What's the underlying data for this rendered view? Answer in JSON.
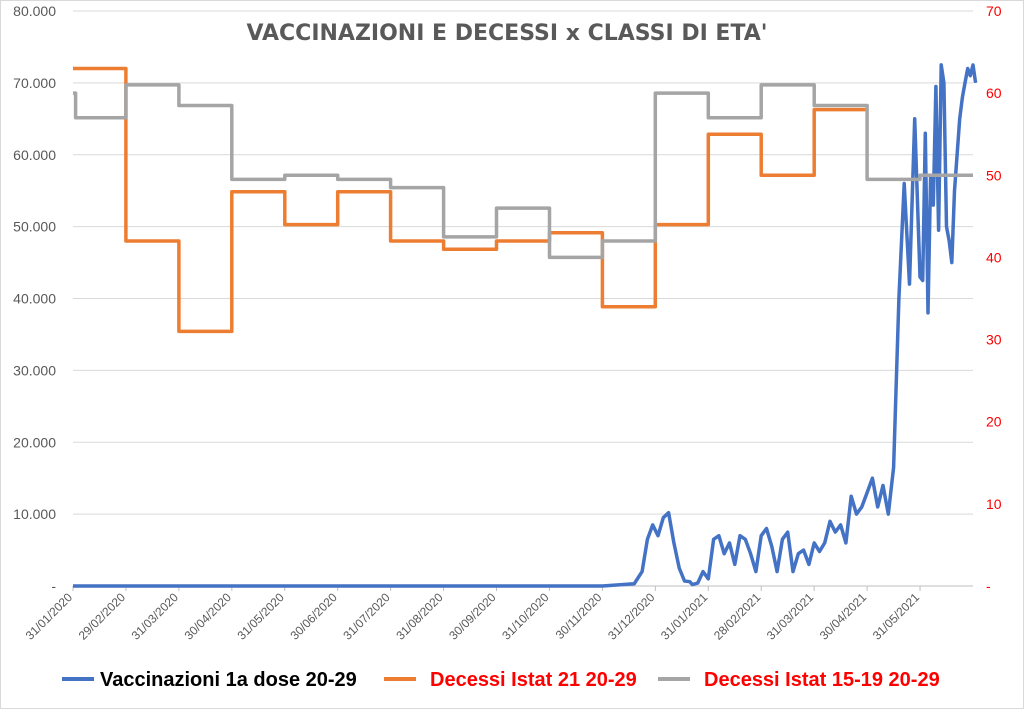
{
  "chart_data": {
    "type": "line",
    "title": "VACCINAZIONI E DECESSI x CLASSI DI ETA'",
    "x_tick_labels": [
      "31/01/2020",
      "29/02/2020",
      "31/03/2020",
      "30/04/2020",
      "31/05/2020",
      "30/06/2020",
      "31/07/2020",
      "31/08/2020",
      "30/09/2020",
      "31/10/2020",
      "30/11/2020",
      "31/12/2020",
      "31/01/2021",
      "28/02/2021",
      "31/03/2021",
      "30/04/2021",
      "31/05/2021"
    ],
    "y_left": {
      "range": [
        0,
        80000
      ],
      "tick_labels": [
        "-",
        "10.000",
        "20.000",
        "30.000",
        "40.000",
        "50.000",
        "60.000",
        "70.000",
        "80.000"
      ]
    },
    "y_right": {
      "range": [
        0,
        70
      ],
      "tick_labels": [
        "-",
        "10",
        "20",
        "30",
        "40",
        "50",
        "60",
        "70"
      ]
    },
    "grid": true,
    "legend_position": "bottom",
    "series": [
      {
        "name": "Vaccinazioni 1a dose 20-29",
        "color": "#4472c4",
        "axis": "left",
        "x": [
          0,
          1,
          2,
          3,
          4,
          5,
          6,
          7,
          8,
          9,
          10,
          10.6,
          10.75,
          10.85,
          10.95,
          11.05,
          11.15,
          11.25,
          11.35,
          11.45,
          11.55,
          11.65,
          11.7,
          11.8,
          11.9,
          12.0,
          12.1,
          12.2,
          12.3,
          12.4,
          12.5,
          12.6,
          12.7,
          12.8,
          12.9,
          13.0,
          13.1,
          13.2,
          13.3,
          13.4,
          13.5,
          13.6,
          13.7,
          13.8,
          13.9,
          14.0,
          14.1,
          14.2,
          14.3,
          14.4,
          14.5,
          14.6,
          14.7,
          14.8,
          14.9,
          15.0,
          15.1,
          15.2,
          15.3,
          15.4,
          15.5,
          15.6,
          15.7,
          15.8,
          15.9,
          16.0,
          16.05,
          16.1,
          16.15,
          16.2,
          16.25,
          16.3,
          16.35,
          16.4,
          16.45,
          16.5,
          16.55,
          16.6,
          16.65,
          16.7,
          16.75,
          16.8,
          16.85,
          16.9,
          16.95,
          17.0,
          17.05
        ],
        "y": [
          0,
          0,
          0,
          0,
          0,
          0,
          0,
          0,
          0,
          0,
          0,
          300,
          2000,
          6500,
          8500,
          7000,
          9500,
          10200,
          6000,
          2500,
          700,
          600,
          200,
          400,
          2000,
          1000,
          6500,
          7000,
          4500,
          6000,
          3000,
          7000,
          6500,
          4500,
          2000,
          7000,
          8000,
          5500,
          2000,
          6500,
          7500,
          2000,
          4500,
          5000,
          3000,
          6000,
          4800,
          6000,
          9000,
          7500,
          8500,
          6000,
          12500,
          10000,
          11000,
          13000,
          15000,
          11000,
          14000,
          10000,
          16500,
          40000,
          56000,
          42000,
          65000,
          43000,
          42500,
          63000,
          38000,
          57000,
          53000,
          69500,
          49500,
          72500,
          70000,
          50000,
          48000,
          45000,
          55000,
          60000,
          65000,
          68000,
          70000,
          72000,
          71000,
          72500,
          70000
        ]
      },
      {
        "name": "Decessi Istat 21 20-29",
        "color": "#ed7d31",
        "axis": "right",
        "step_x": [
          0,
          1,
          2,
          3,
          4,
          5,
          6,
          7,
          8,
          9,
          10,
          11,
          12,
          13,
          14,
          15
        ],
        "step_y": [
          63,
          42,
          31,
          48,
          44,
          48,
          42,
          41,
          42,
          43,
          34,
          44,
          55,
          50,
          58,
          58
        ],
        "x_end": 15
      },
      {
        "name": "Decessi Istat 15-19 20-29",
        "color": "#a5a5a5",
        "axis": "right",
        "step_x": [
          0,
          0.05,
          1,
          2,
          3,
          4,
          5,
          6,
          7,
          8,
          9,
          10,
          11,
          12,
          13,
          14,
          15,
          16
        ],
        "step_y": [
          60,
          57,
          61,
          58.5,
          49.5,
          50,
          49.5,
          48.5,
          42.5,
          46,
          40,
          42,
          60,
          57,
          61,
          58.5,
          49.5,
          50
        ],
        "x_end": 17
      }
    ]
  }
}
